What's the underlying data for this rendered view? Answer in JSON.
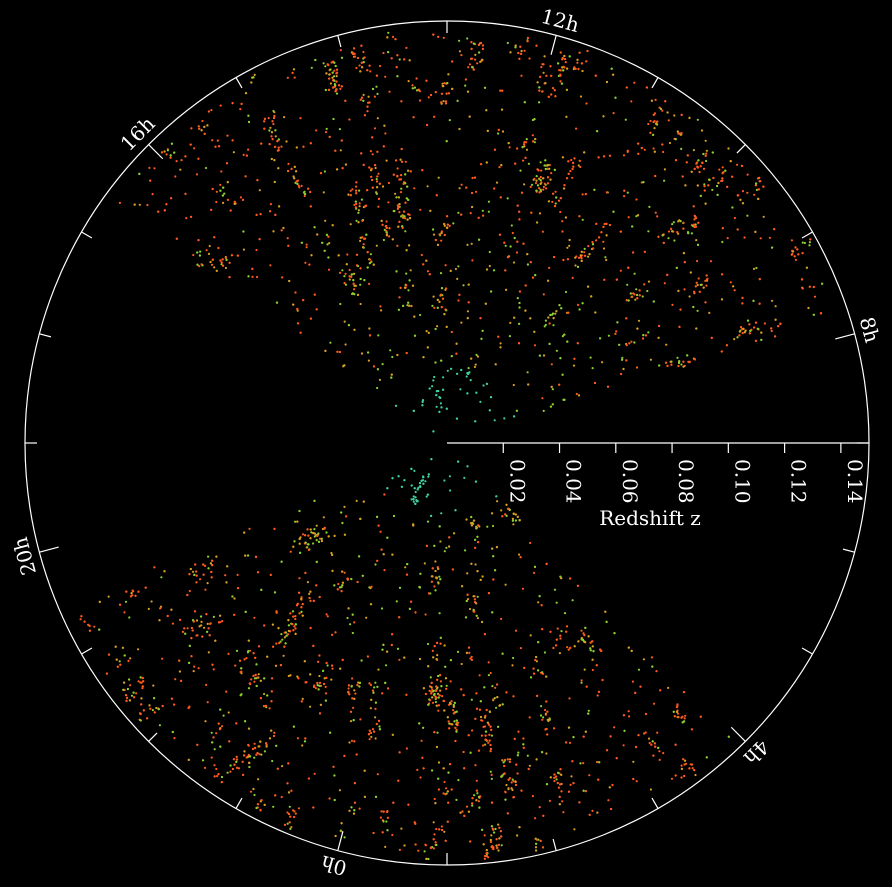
{
  "chart_data": {
    "type": "polar-wedge",
    "radial_axis_label": "Redshift z",
    "rlim": [
      0,
      0.15
    ],
    "rticks": [
      0.02,
      0.04,
      0.06,
      0.08,
      0.1,
      0.12,
      0.14
    ],
    "rtick_labels": [
      "0.02",
      "0.04",
      "0.06",
      "0.08",
      "0.10",
      "0.12",
      "0.14"
    ],
    "angle_ticks": [
      {
        "value": 0,
        "label": "0h"
      },
      {
        "value": 4,
        "label": "4h"
      },
      {
        "value": 8,
        "label": "8h"
      },
      {
        "value": 12,
        "label": "12h"
      },
      {
        "value": 16,
        "label": "16h"
      },
      {
        "value": 20,
        "label": "20h"
      }
    ],
    "angle_minor_ticks": [
      1,
      2,
      3,
      5,
      6,
      7,
      9,
      10,
      11,
      13,
      14,
      15,
      17,
      18,
      19,
      21,
      22,
      23
    ]
  }
}
